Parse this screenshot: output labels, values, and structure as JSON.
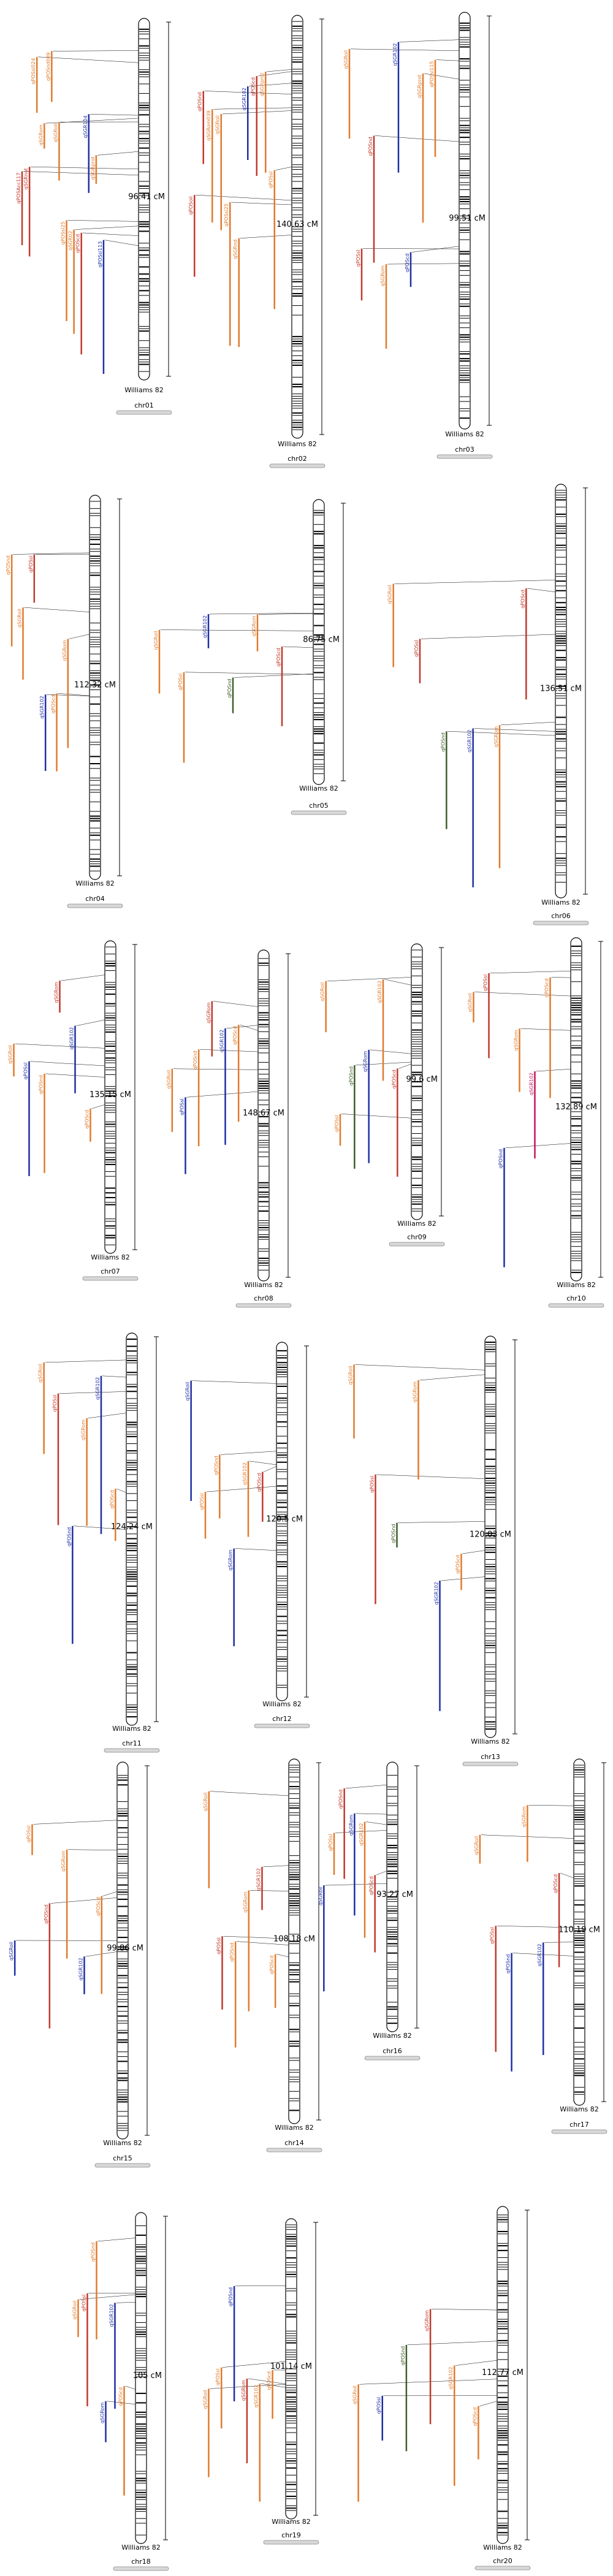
{
  "legend_colors": {
    "orange": "#e07a2c",
    "red": "#c0392b",
    "blue": "#1f2fa3",
    "green": "#3f5e2a",
    "pink": "#c2185b",
    "bar": "#000000"
  },
  "chromosomes": [
    {
      "id": "chr01",
      "length": "96.41 cM",
      "genotype": "Williams 82",
      "qtl": [
        {
          "name": "qPOSAcc117",
          "color": "red"
        },
        {
          "name": "qSGRnot",
          "color": "red"
        },
        {
          "name": "qPOSsl024",
          "color": "orange"
        },
        {
          "name": "qSGRom",
          "color": "orange"
        },
        {
          "name": "qPOSnd009",
          "color": "orange"
        },
        {
          "name": "qSGRoil",
          "color": "orange"
        },
        {
          "name": "qPOSsl25",
          "color": "orange"
        },
        {
          "name": "qSGR02",
          "color": "orange"
        },
        {
          "name": "qPOScd",
          "color": "red"
        },
        {
          "name": "qSGR104",
          "color": "blue"
        },
        {
          "name": "qSGRprot",
          "color": "orange"
        },
        {
          "name": "qPOSsl113",
          "color": "blue"
        }
      ]
    },
    {
      "id": "chr02",
      "length": "140.63 cM",
      "genotype": "Williams 82",
      "qtl": [
        {
          "name": "qPOSoil",
          "color": "red"
        },
        {
          "name": "qPOSnd",
          "color": "red"
        },
        {
          "name": "qSGRom039",
          "color": "orange"
        },
        {
          "name": "qSGRoil",
          "color": "orange"
        },
        {
          "name": "qPOSsl25",
          "color": "orange"
        },
        {
          "name": "qSGRnd",
          "color": "orange"
        },
        {
          "name": "qSGR102",
          "color": "blue"
        },
        {
          "name": "qPOScd",
          "color": "red"
        },
        {
          "name": "qSGRprot",
          "color": "orange"
        },
        {
          "name": "qPOSsl",
          "color": "orange"
        }
      ]
    },
    {
      "id": "chr03",
      "length": "99.51 cM",
      "genotype": "Williams 82",
      "qtl": [
        {
          "name": "qSGRoil",
          "color": "orange"
        },
        {
          "name": "qPOSsl",
          "color": "red"
        },
        {
          "name": "qPOSnd",
          "color": "red"
        },
        {
          "name": "qSGRom",
          "color": "orange"
        },
        {
          "name": "qSGR102",
          "color": "blue"
        },
        {
          "name": "qPOScd",
          "color": "blue"
        },
        {
          "name": "qSGRprot",
          "color": "orange"
        },
        {
          "name": "qPOSsl115",
          "color": "orange"
        }
      ]
    },
    {
      "id": "chr04",
      "length": "112.32 cM",
      "genotype": "Williams 82",
      "qtl": [
        {
          "name": "qPOSnd",
          "color": "orange"
        },
        {
          "name": "qSGRoil",
          "color": "orange"
        },
        {
          "name": "qPOSsl",
          "color": "red"
        },
        {
          "name": "qSGR102",
          "color": "blue"
        },
        {
          "name": "qPOScd",
          "color": "orange"
        },
        {
          "name": "qSGRom",
          "color": "orange"
        }
      ]
    },
    {
      "id": "chr05",
      "length": "86.75 cM",
      "genotype": "Williams 82",
      "qtl": [
        {
          "name": "qSGRoil",
          "color": "orange"
        },
        {
          "name": "qPOSsl",
          "color": "orange"
        },
        {
          "name": "qSGR102",
          "color": "blue"
        },
        {
          "name": "qPOSnd",
          "color": "green"
        },
        {
          "name": "qSGRom",
          "color": "orange"
        },
        {
          "name": "qPOScd",
          "color": "red"
        }
      ]
    },
    {
      "id": "chr06",
      "length": "136.51 cM",
      "genotype": "Williams 82",
      "qtl": [
        {
          "name": "qSGRoil",
          "color": "orange"
        },
        {
          "name": "qPOSsl",
          "color": "red"
        },
        {
          "name": "qPOSnd",
          "color": "green"
        },
        {
          "name": "qSGR102",
          "color": "blue"
        },
        {
          "name": "qSGRom",
          "color": "orange"
        },
        {
          "name": "qPOScd",
          "color": "red"
        }
      ]
    },
    {
      "id": "chr07",
      "length": "135.15 cM",
      "genotype": "Williams 82",
      "qtl": [
        {
          "name": "qSGRoil",
          "color": "orange"
        },
        {
          "name": "qPOSsl",
          "color": "blue"
        },
        {
          "name": "qPOSnd",
          "color": "orange"
        },
        {
          "name": "qSGRom",
          "color": "red"
        },
        {
          "name": "qSGR102",
          "color": "blue"
        },
        {
          "name": "qPOScd",
          "color": "orange"
        }
      ]
    },
    {
      "id": "chr08",
      "length": "148.67 cM",
      "genotype": "Williams 82",
      "qtl": [
        {
          "name": "qSGRoil",
          "color": "orange"
        },
        {
          "name": "qPOSsl",
          "color": "blue"
        },
        {
          "name": "qPOSnd",
          "color": "orange"
        },
        {
          "name": "qSGRom",
          "color": "red"
        },
        {
          "name": "qSGR102",
          "color": "blue"
        },
        {
          "name": "qPOScd",
          "color": "orange"
        }
      ]
    },
    {
      "id": "chr09",
      "length": "99.6 cM",
      "genotype": "Williams 82",
      "qtl": [
        {
          "name": "qSGRoil",
          "color": "orange"
        },
        {
          "name": "qPOSsl",
          "color": "orange"
        },
        {
          "name": "qPOSnd",
          "color": "green"
        },
        {
          "name": "qSGRom",
          "color": "blue"
        },
        {
          "name": "qSGR102",
          "color": "orange"
        },
        {
          "name": "qPOScd",
          "color": "red"
        }
      ]
    },
    {
      "id": "chr10",
      "length": "132.89 cM",
      "genotype": "Williams 82",
      "qtl": [
        {
          "name": "qSGRoil",
          "color": "orange"
        },
        {
          "name": "qPOSsl",
          "color": "red"
        },
        {
          "name": "qPOSnd",
          "color": "blue"
        },
        {
          "name": "qSGRom",
          "color": "orange"
        },
        {
          "name": "qSGR102",
          "color": "pink"
        },
        {
          "name": "qPOScd",
          "color": "orange"
        }
      ]
    },
    {
      "id": "chr11",
      "length": "124.24 cM",
      "genotype": "Williams 82",
      "qtl": [
        {
          "name": "qSGRoil",
          "color": "orange"
        },
        {
          "name": "qPOSsl",
          "color": "red"
        },
        {
          "name": "qPOSnd",
          "color": "blue"
        },
        {
          "name": "qSGRom",
          "color": "orange"
        },
        {
          "name": "qSGR102",
          "color": "blue"
        },
        {
          "name": "qPOScd",
          "color": "orange"
        }
      ]
    },
    {
      "id": "chr12",
      "length": "120.5 cM",
      "genotype": "Williams 82",
      "qtl": [
        {
          "name": "qSGRoil",
          "color": "blue"
        },
        {
          "name": "qPOSsl",
          "color": "orange"
        },
        {
          "name": "qPOSnd",
          "color": "orange"
        },
        {
          "name": "qSGRom",
          "color": "blue"
        },
        {
          "name": "qSGR102",
          "color": "orange"
        },
        {
          "name": "qPOScd",
          "color": "red"
        }
      ]
    },
    {
      "id": "chr13",
      "length": "120.03 cM",
      "genotype": "Williams 82",
      "qtl": [
        {
          "name": "qSGRoil",
          "color": "orange"
        },
        {
          "name": "qPOSsl",
          "color": "red"
        },
        {
          "name": "qPOSnd",
          "color": "green"
        },
        {
          "name": "qSGRom",
          "color": "orange"
        },
        {
          "name": "qSGR102",
          "color": "blue"
        },
        {
          "name": "qPOScd",
          "color": "orange"
        }
      ]
    },
    {
      "id": "chr15",
      "length": "99.86 cM",
      "genotype": "Williams 82",
      "qtl": [
        {
          "name": "qSGRoil",
          "color": "blue"
        },
        {
          "name": "qPOSsl",
          "color": "orange"
        },
        {
          "name": "qPOSnd",
          "color": "red"
        },
        {
          "name": "qSGRom",
          "color": "orange"
        },
        {
          "name": "qSGR102",
          "color": "blue"
        },
        {
          "name": "qPOScd",
          "color": "orange"
        }
      ]
    },
    {
      "id": "chr14",
      "length": "108.18 cM",
      "genotype": "Williams 82",
      "qtl": [
        {
          "name": "qSGRoil",
          "color": "orange"
        },
        {
          "name": "qPOSsl",
          "color": "red"
        },
        {
          "name": "qPOSnd",
          "color": "orange"
        },
        {
          "name": "qSGRom",
          "color": "orange"
        },
        {
          "name": "qSGR102",
          "color": "red"
        },
        {
          "name": "qPOScd",
          "color": "orange"
        }
      ]
    },
    {
      "id": "chr16",
      "length": "93.27 cM",
      "genotype": "Williams 82",
      "qtl": [
        {
          "name": "qSGRoil",
          "color": "blue"
        },
        {
          "name": "qPOSsl",
          "color": "orange"
        },
        {
          "name": "qPOSnd",
          "color": "red"
        },
        {
          "name": "qSGRom",
          "color": "blue"
        },
        {
          "name": "qSGR102",
          "color": "orange"
        },
        {
          "name": "qPOScd",
          "color": "red"
        }
      ]
    },
    {
      "id": "chr17",
      "length": "110.19 cM",
      "genotype": "Williams 82",
      "qtl": [
        {
          "name": "qSGRoil",
          "color": "orange"
        },
        {
          "name": "qPOSsl",
          "color": "red"
        },
        {
          "name": "qPOSnd",
          "color": "blue"
        },
        {
          "name": "qSGRom",
          "color": "orange"
        },
        {
          "name": "qSGR102",
          "color": "blue"
        },
        {
          "name": "qPOScd",
          "color": "red"
        }
      ]
    },
    {
      "id": "chr18",
      "length": "105 cM",
      "genotype": "Williams 82",
      "qtl": [
        {
          "name": "qSGRoil",
          "color": "orange"
        },
        {
          "name": "qPOSsl",
          "color": "red"
        },
        {
          "name": "qPOSnd",
          "color": "orange"
        },
        {
          "name": "qSGRom",
          "color": "blue"
        },
        {
          "name": "qSGR102",
          "color": "blue"
        },
        {
          "name": "qPOScd",
          "color": "orange"
        }
      ]
    },
    {
      "id": "chr19",
      "length": "101.14 cM",
      "genotype": "Williams 82",
      "qtl": [
        {
          "name": "qSGRoil",
          "color": "orange"
        },
        {
          "name": "qPOSsl",
          "color": "orange"
        },
        {
          "name": "qPOSnd",
          "color": "blue"
        },
        {
          "name": "qSGRom",
          "color": "red"
        },
        {
          "name": "qSGR102",
          "color": "orange"
        },
        {
          "name": "qPOScd",
          "color": "orange"
        }
      ]
    },
    {
      "id": "chr20",
      "length": "112.77 cM",
      "genotype": "Williams 82",
      "qtl": [
        {
          "name": "qSGRoil",
          "color": "orange"
        },
        {
          "name": "qPOSsl",
          "color": "blue"
        },
        {
          "name": "qPOSnd",
          "color": "green"
        },
        {
          "name": "qSGRom",
          "color": "red"
        },
        {
          "name": "qSGR102",
          "color": "orange"
        },
        {
          "name": "qPOScd",
          "color": "orange"
        }
      ]
    }
  ]
}
